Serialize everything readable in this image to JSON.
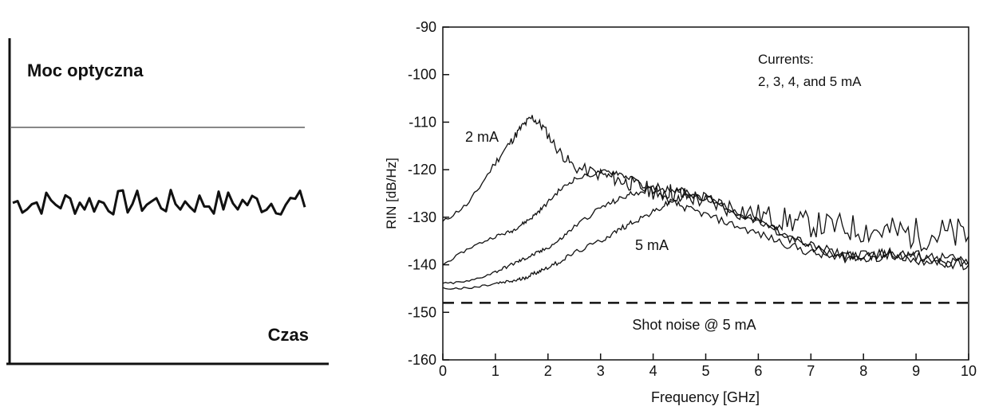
{
  "chart_data": [
    {
      "type": "line",
      "title": "",
      "xlabel": "Czas",
      "ylabel": "Moc optyczna",
      "series": [
        {
          "style": "noisy-trace",
          "mean": 0.5,
          "amplitude": 0.08
        },
        {
          "style": "thin-reference-line",
          "value": 0.5
        }
      ]
    },
    {
      "type": "line",
      "title": "",
      "xlabel": "Frequency [GHz]",
      "ylabel": "RIN [dB/Hz]",
      "xlim": [
        0,
        10
      ],
      "ylim": [
        -160,
        -90
      ],
      "xticks": [
        "0",
        "1",
        "2",
        "3",
        "4",
        "5",
        "6",
        "7",
        "8",
        "9",
        "10"
      ],
      "yticks": [
        "-90",
        "-100",
        "-110",
        "-120",
        "-130",
        "-140",
        "-150",
        "-160"
      ],
      "grid": false,
      "legend_text": [
        "Currents:",
        "2, 3, 4, and 5 mA"
      ],
      "annotations": {
        "low_current": "2 mA",
        "high_current": "5 mA",
        "shot_noise": "Shot noise @ 5 mA"
      },
      "x": [
        0,
        0.5,
        1.0,
        1.3,
        1.5,
        1.7,
        1.9,
        2.2,
        2.5,
        3.0,
        3.3,
        3.6,
        4.0,
        4.3,
        4.6,
        5.0,
        5.5,
        6.0,
        6.5,
        7.0,
        7.5,
        8.0,
        8.5,
        9.0,
        9.5,
        10.0
      ],
      "series": [
        {
          "name": "2 mA",
          "values": [
            -131,
            -127,
            -118.5,
            -114,
            -111,
            -109,
            -111,
            -116,
            -119.5,
            -121,
            -122,
            -123,
            -124.5,
            -124.5,
            -125.5,
            -126.5,
            -128,
            -129.5,
            -130.5,
            -131.5,
            -132,
            -132.5,
            -133,
            -133.5,
            -133.5,
            -134
          ]
        },
        {
          "name": "3 mA",
          "values": [
            -140,
            -136.5,
            -134,
            -133,
            -131.5,
            -130,
            -128,
            -124.5,
            -122,
            -120.5,
            -120.5,
            -122,
            -124.5,
            -126.5,
            -128,
            -129.5,
            -131.5,
            -133.5,
            -135.5,
            -137.5,
            -138.5,
            -138.5,
            -137.5,
            -138,
            -138.5,
            -139.5
          ]
        },
        {
          "name": "4 mA",
          "values": [
            -144,
            -143.5,
            -141.5,
            -140,
            -139,
            -138,
            -137,
            -135,
            -132,
            -128,
            -126.5,
            -125,
            -124,
            -124,
            -124.5,
            -126,
            -128.5,
            -131,
            -133.5,
            -136,
            -137.5,
            -138,
            -137.5,
            -138.5,
            -139.5,
            -140
          ]
        },
        {
          "name": "5 mA",
          "values": [
            -145,
            -145,
            -144,
            -143.5,
            -143,
            -142,
            -141,
            -139.5,
            -137.5,
            -135,
            -133,
            -131,
            -129,
            -127,
            -125.5,
            -126,
            -128.5,
            -131,
            -134,
            -136.5,
            -138,
            -138.5,
            -138,
            -139,
            -139.5,
            -140
          ]
        },
        {
          "name": "Shot noise @ 5 mA",
          "style": "dashed",
          "constant": -148
        }
      ]
    }
  ]
}
